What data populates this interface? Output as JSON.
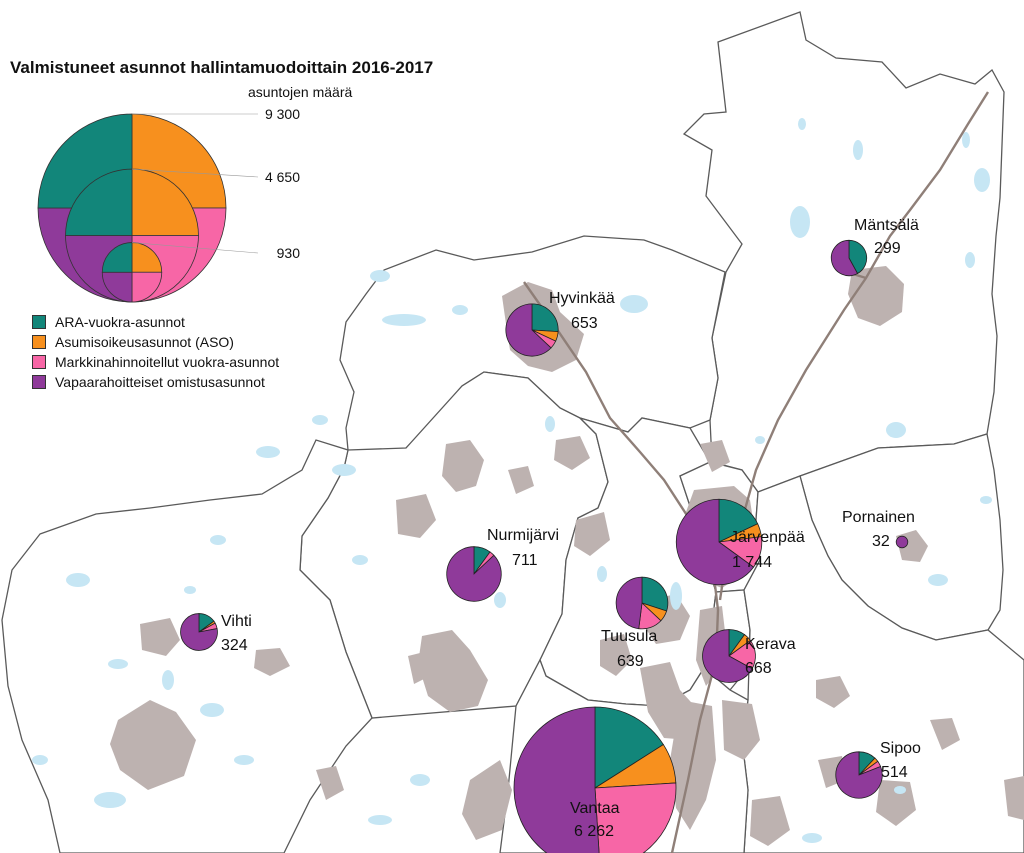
{
  "title": "Valmistuneet asunnot hallintamuodoittain 2016-2017",
  "size_legend": {
    "header": "asuntojen määrä",
    "ticks": [
      {
        "label": "9 300",
        "value": 9300
      },
      {
        "label": "4 650",
        "value": 4650
      },
      {
        "label": "930",
        "value": 930
      }
    ]
  },
  "colors": {
    "ara": "#12867a",
    "aso": "#f7901e",
    "market": "#f766a6",
    "owner": "#8f3a9a",
    "builtup": "#bdb2b0",
    "water": "#c6e6f4",
    "rail": "#8f7f78"
  },
  "legend": [
    {
      "key": "ara",
      "label": "ARA-vuokra-asunnot"
    },
    {
      "key": "aso",
      "label": "Asumisoikeusasunnot (ASO)"
    },
    {
      "key": "market",
      "label": "Markkinahinnoitellut vuokra-asunnot"
    },
    {
      "key": "owner",
      "label": "Vapaarahoitteiset omistusasunnot"
    }
  ],
  "municipalities": [
    {
      "name": "Mäntsälä",
      "total": "299",
      "value": 299,
      "shares": [
        0.42,
        0.0,
        0.0,
        0.58
      ]
    },
    {
      "name": "Hyvinkää",
      "total": "653",
      "value": 653,
      "shares": [
        0.26,
        0.06,
        0.05,
        0.63
      ]
    },
    {
      "name": "Järvenpää",
      "total": "1 744",
      "value": 1744,
      "shares": [
        0.18,
        0.05,
        0.12,
        0.65
      ]
    },
    {
      "name": "Pornainen",
      "total": "32",
      "value": 32,
      "shares": [
        0.0,
        0.0,
        0.0,
        1.0
      ]
    },
    {
      "name": "Nurmijärvi",
      "total": "711",
      "value": 711,
      "shares": [
        0.1,
        0.0,
        0.03,
        0.87
      ]
    },
    {
      "name": "Vihti",
      "total": "324",
      "value": 324,
      "shares": [
        0.15,
        0.02,
        0.05,
        0.78
      ]
    },
    {
      "name": "Tuusula",
      "total": "639",
      "value": 639,
      "shares": [
        0.3,
        0.07,
        0.15,
        0.48
      ]
    },
    {
      "name": "Kerava",
      "total": "668",
      "value": 668,
      "shares": [
        0.1,
        0.05,
        0.18,
        0.67
      ]
    },
    {
      "name": "Vantaa",
      "total": "6 262",
      "value": 6262,
      "shares": [
        0.16,
        0.08,
        0.25,
        0.51
      ]
    },
    {
      "name": "Sipoo",
      "total": "514",
      "value": 514,
      "shares": [
        0.12,
        0.03,
        0.04,
        0.81
      ]
    }
  ]
}
